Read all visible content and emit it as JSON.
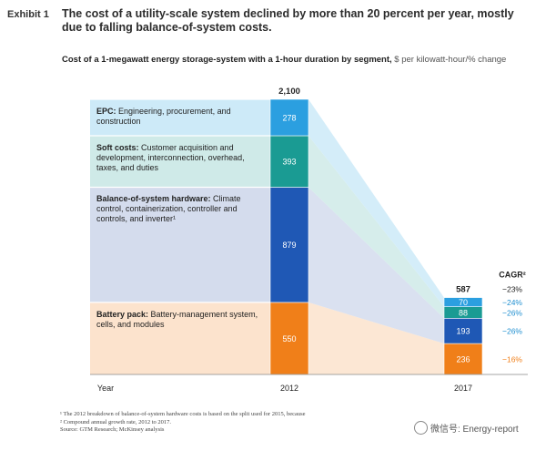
{
  "exhibit": {
    "label": "Exhibit 1"
  },
  "header": {
    "title": "The cost of a utility-scale system declined by more than 20 percent per year, mostly due to falling balance-of-system costs.",
    "subtitle": "Cost of a 1-megawatt energy storage-system with a 1-hour duration by segment,",
    "units": "$ per kilowatt-hour/% change"
  },
  "segments": [
    {
      "key": "battery",
      "bold": "Battery pack:",
      "text": " Battery-management system, cells, and modules"
    },
    {
      "key": "bos",
      "bold": "Balance-of-system hardware:",
      "text": " Climate control, containerization, controller and controls, and inverter¹"
    },
    {
      "key": "soft",
      "bold": "Soft costs:",
      "text": " Customer acquisition and development, interconnection, overhead, taxes, and duties"
    },
    {
      "key": "epc",
      "bold": "EPC:",
      "text": " Engineering, procurement, and construction"
    }
  ],
  "colors": {
    "battery_bar": "#f07f19",
    "battery_band": "#fce3cd",
    "bos_bar": "#1f58b5",
    "bos_band": "#d4dced",
    "soft_bar": "#1a9b93",
    "soft_band": "#cfeae8",
    "epc_bar": "#2b9fe0",
    "epc_band": "#cdeaf8",
    "cagr_text": "#1f8fd0"
  },
  "chart_data": {
    "type": "bar",
    "stacked": true,
    "categories": [
      "2012",
      "2017"
    ],
    "x_axis_label": "Year",
    "totals": [
      2100,
      587
    ],
    "series": [
      {
        "name": "Battery pack",
        "values": [
          550,
          236
        ],
        "cagr": "−16%"
      },
      {
        "name": "Balance-of-system hardware",
        "values": [
          879,
          193
        ],
        "cagr": "−26%"
      },
      {
        "name": "Soft costs",
        "values": [
          393,
          88
        ],
        "cagr": "−26%"
      },
      {
        "name": "EPC",
        "values": [
          278,
          70
        ],
        "cagr": "−24%"
      }
    ],
    "total_cagr": "−23%",
    "cagr_header": "CAGR²"
  },
  "footnotes": [
    "¹ The 2012 breakdown of balance-of-system hardware costs is based on the split used for 2015, because",
    "² Compound annual growth rate, 2012 to 2017.",
    "Source: GTM Research; McKinsey analysis"
  ],
  "watermark": {
    "text": "微信号: Energy-report"
  }
}
